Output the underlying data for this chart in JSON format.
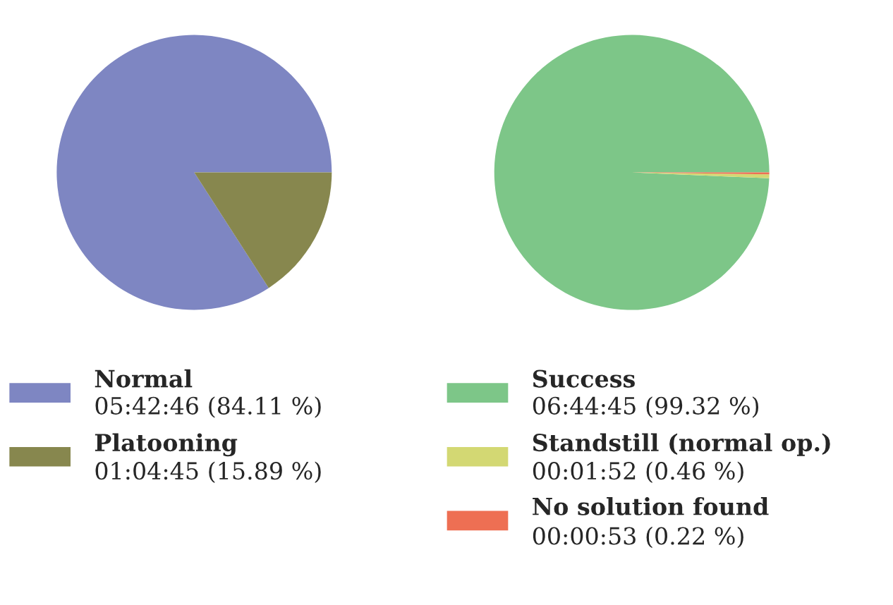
{
  "chart_data": [
    {
      "type": "pie",
      "categories": [
        "Normal",
        "Platooning"
      ],
      "values": [
        84.11,
        15.89
      ],
      "colors": [
        "#7e86c2",
        "#87874e"
      ],
      "value_labels": [
        "05:42:46 (84.11 %)",
        "01:04:45 (15.89 %)"
      ],
      "legend": "bottom"
    },
    {
      "type": "pie",
      "categories": [
        "Success",
        "Standstill (normal op.)",
        "No solution found"
      ],
      "values": [
        99.32,
        0.46,
        0.22
      ],
      "colors": [
        "#7dc688",
        "#d3d873",
        "#ee6f53"
      ],
      "value_labels": [
        "06:44:45 (99.32 %)",
        "00:01:52 (0.46 %)",
        "00:00:53 (0.22 %)"
      ],
      "legend": "bottom"
    }
  ]
}
